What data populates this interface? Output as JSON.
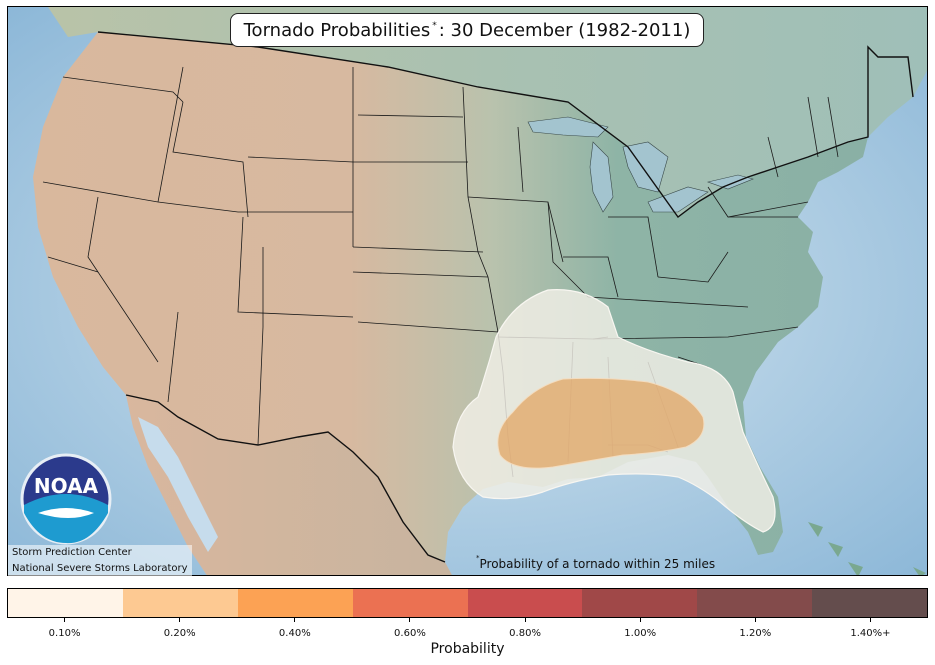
{
  "map": {
    "title_main": "Tornado Probabilities",
    "title_marker": "*",
    "title_rest": ": 30 December (1982-2011)",
    "footnote_marker": "*",
    "footnote_text": "Probability of a tornado within 25 miles",
    "credits": [
      "Storm Prediction Center",
      "National Severe Storms Laboratory"
    ],
    "logo_text": "NOAA",
    "colors": {
      "ocean": "#b5d2e6",
      "land_west": "#d6b79d",
      "land_east": "#8fb3a7",
      "outer_contour": "#f0ece3",
      "inner_contour": "#e2a868",
      "borders": "#1a1a1a"
    }
  },
  "colorbar": {
    "label": "Probability",
    "colors": [
      "#fff4e8",
      "#fdc992",
      "#fca254",
      "#eb7152",
      "#c94d4e",
      "#a04848",
      "#834b4b",
      "#644d4d"
    ],
    "ticks": [
      "0.10%",
      "0.20%",
      "0.40%",
      "0.60%",
      "0.80%",
      "1.00%",
      "1.20%",
      "1.40%+"
    ]
  }
}
